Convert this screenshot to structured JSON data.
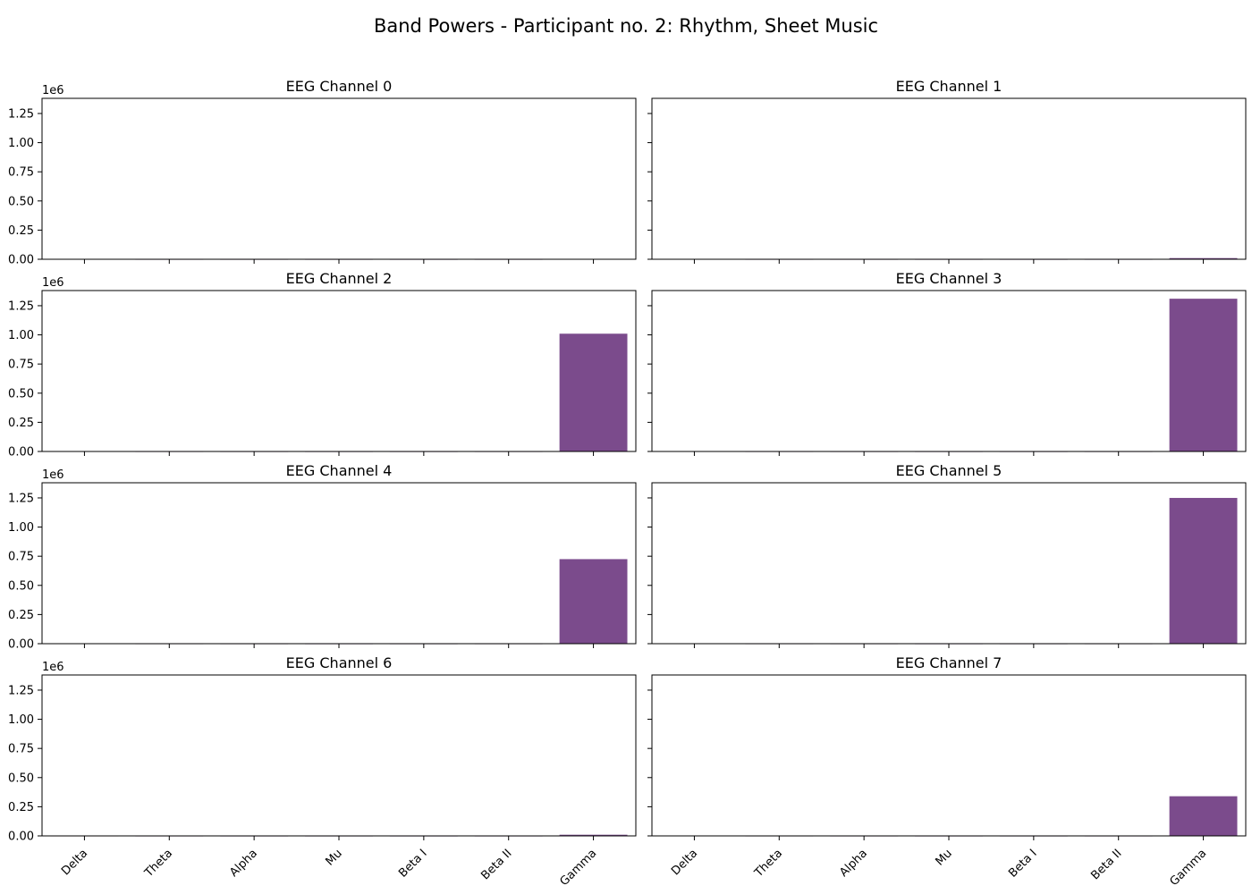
{
  "figure": {
    "title": "Band Powers - Participant no. 2: Rhythm, Sheet Music"
  },
  "colors": {
    "bar_default": "#7b4b8c",
    "bar_delta": "#c0392b",
    "axis": "#000000"
  },
  "chart_data": {
    "type": "bar",
    "categories": [
      "Delta",
      "Theta",
      "Alpha",
      "Mu",
      "Beta I",
      "Beta II",
      "Gamma"
    ],
    "y_offset_label": "1e6",
    "y_scale": 1000000,
    "ylim": [
      0,
      1380000
    ],
    "yticks": [
      0,
      250000,
      500000,
      750000,
      1000000,
      1250000
    ],
    "ytick_labels": [
      "0.00",
      "0.25",
      "0.50",
      "0.75",
      "1.00",
      "1.25"
    ],
    "grid": false,
    "panels": [
      {
        "title": "EEG Channel 0",
        "values": [
          3000,
          400,
          300,
          200,
          150,
          200,
          3000
        ]
      },
      {
        "title": "EEG Channel 1",
        "values": [
          3000,
          400,
          300,
          200,
          150,
          250,
          10000
        ]
      },
      {
        "title": "EEG Channel 2",
        "values": [
          3000,
          400,
          300,
          200,
          150,
          300,
          1010000
        ]
      },
      {
        "title": "EEG Channel 3",
        "values": [
          3000,
          400,
          300,
          200,
          150,
          300,
          1310000
        ]
      },
      {
        "title": "EEG Channel 4",
        "values": [
          3000,
          400,
          300,
          200,
          150,
          300,
          725000
        ]
      },
      {
        "title": "EEG Channel 5",
        "values": [
          3000,
          400,
          300,
          200,
          150,
          300,
          1250000
        ]
      },
      {
        "title": "EEG Channel 6",
        "values": [
          600,
          300,
          200,
          150,
          100,
          200,
          10000
        ]
      },
      {
        "title": "EEG Channel 7",
        "values": [
          3000,
          400,
          300,
          200,
          150,
          300,
          340000
        ]
      }
    ]
  }
}
